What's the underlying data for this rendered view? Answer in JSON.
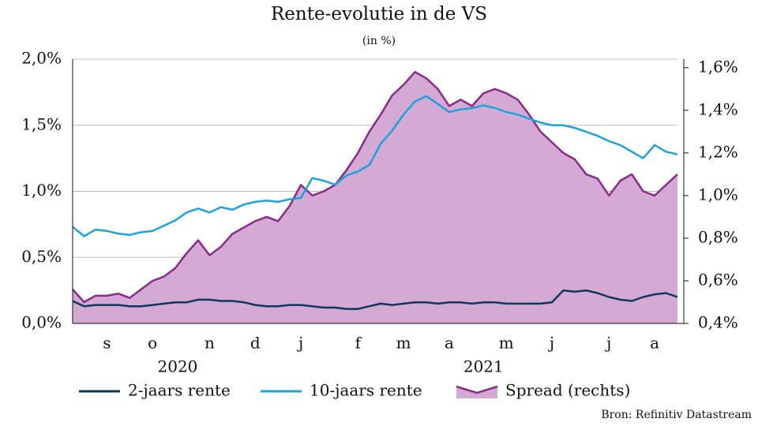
{
  "chart_data": {
    "type": "line",
    "title": "Rente-evolutie in de VS",
    "subtitle": "(in %)",
    "source": "Bron: Refinitiv Datastream",
    "categories": [
      null,
      null,
      null,
      "s",
      null,
      null,
      null,
      "o",
      null,
      null,
      null,
      null,
      "n",
      null,
      null,
      null,
      "d",
      null,
      null,
      null,
      "j",
      null,
      null,
      null,
      null,
      "f",
      null,
      null,
      null,
      "m",
      null,
      null,
      null,
      "a",
      null,
      null,
      null,
      null,
      "m",
      null,
      null,
      null,
      "j",
      null,
      null,
      null,
      null,
      "j",
      null,
      null,
      null,
      "a",
      null,
      null
    ],
    "year_labels": [
      "2020",
      "2021"
    ],
    "ylim": [
      0,
      2
    ],
    "yticks": [
      {
        "value": 0,
        "label": "0,0%"
      },
      {
        "value": 0.5,
        "label": "0,5%"
      },
      {
        "value": 1,
        "label": "1,0%"
      },
      {
        "value": 1.5,
        "label": "1,5%"
      },
      {
        "value": 2,
        "label": "2,0%"
      }
    ],
    "y2lim": [
      0.4,
      1.64
    ],
    "y2ticks": [
      {
        "value": 0.4,
        "label": "0,4%"
      },
      {
        "value": 0.6,
        "label": "0,6%"
      },
      {
        "value": 0.8,
        "label": "0,8%"
      },
      {
        "value": 1,
        "label": "1,0%"
      },
      {
        "value": 1.2,
        "label": "1,2%"
      },
      {
        "value": 1.4,
        "label": "1,4%"
      },
      {
        "value": 1.6,
        "label": "1,6%"
      }
    ],
    "grid": true,
    "legend": "bottom",
    "series": [
      {
        "name": "Spread (rechts)",
        "color": "#8b2a8b",
        "fill": "#d4a9d4",
        "axis": "y2",
        "area": true,
        "values": [
          0.56,
          0.5,
          0.53,
          0.53,
          0.54,
          0.52,
          0.56,
          0.6,
          0.62,
          0.66,
          0.73,
          0.79,
          0.72,
          0.76,
          0.82,
          0.85,
          0.88,
          0.9,
          0.88,
          0.95,
          1.05,
          1.0,
          1.02,
          1.05,
          1.12,
          1.2,
          1.3,
          1.38,
          1.47,
          1.52,
          1.58,
          1.55,
          1.5,
          1.42,
          1.45,
          1.42,
          1.48,
          1.5,
          1.48,
          1.45,
          1.38,
          1.3,
          1.25,
          1.2,
          1.17,
          1.1,
          1.08,
          1.0,
          1.07,
          1.1,
          1.02,
          1.0,
          1.05,
          1.1
        ]
      },
      {
        "name": "2-jaars rente",
        "color": "#0d3a5c",
        "values": [
          0.17,
          0.13,
          0.14,
          0.14,
          0.14,
          0.13,
          0.13,
          0.14,
          0.15,
          0.16,
          0.16,
          0.18,
          0.18,
          0.17,
          0.17,
          0.16,
          0.14,
          0.13,
          0.13,
          0.14,
          0.14,
          0.13,
          0.12,
          0.12,
          0.11,
          0.11,
          0.13,
          0.15,
          0.14,
          0.15,
          0.16,
          0.16,
          0.15,
          0.16,
          0.16,
          0.15,
          0.16,
          0.16,
          0.15,
          0.15,
          0.15,
          0.15,
          0.16,
          0.25,
          0.24,
          0.25,
          0.23,
          0.2,
          0.18,
          0.17,
          0.2,
          0.22,
          0.23,
          0.2
        ]
      },
      {
        "name": "10-jaars rente",
        "color": "#1ba3db",
        "values": [
          0.73,
          0.66,
          0.71,
          0.7,
          0.68,
          0.67,
          0.69,
          0.7,
          0.74,
          0.78,
          0.84,
          0.87,
          0.84,
          0.88,
          0.86,
          0.9,
          0.92,
          0.93,
          0.92,
          0.94,
          0.95,
          1.1,
          1.08,
          1.05,
          1.12,
          1.15,
          1.2,
          1.36,
          1.46,
          1.58,
          1.68,
          1.72,
          1.66,
          1.6,
          1.62,
          1.63,
          1.65,
          1.63,
          1.6,
          1.58,
          1.55,
          1.52,
          1.5,
          1.5,
          1.48,
          1.45,
          1.42,
          1.38,
          1.35,
          1.3,
          1.25,
          1.35,
          1.3,
          1.28
        ]
      }
    ]
  }
}
